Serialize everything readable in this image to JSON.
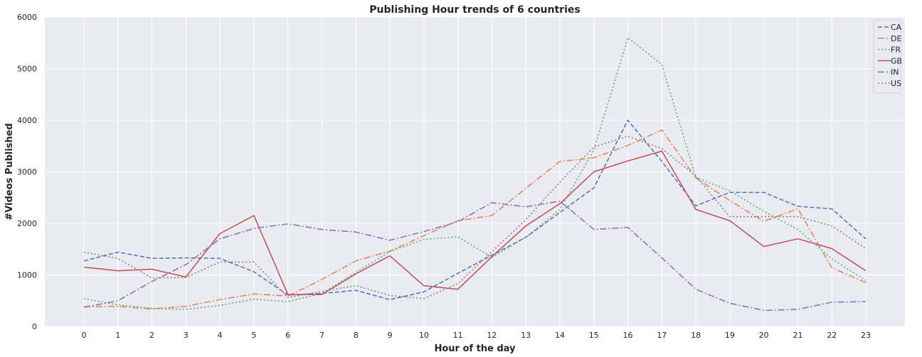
{
  "chart_data": {
    "type": "line",
    "title": "Publishing Hour trends of 6 countries",
    "xlabel": "Hour of the day",
    "ylabel": "#Videos Published",
    "x": [
      0,
      1,
      2,
      3,
      4,
      5,
      6,
      7,
      8,
      9,
      10,
      11,
      12,
      13,
      14,
      15,
      16,
      17,
      18,
      19,
      20,
      21,
      22,
      23
    ],
    "xlim": [
      -1.15,
      24.15
    ],
    "ylim": [
      0,
      6000
    ],
    "yticks": [
      0,
      1000,
      2000,
      3000,
      4000,
      5000,
      6000
    ],
    "grid": true,
    "legend_position": "top-right",
    "series": [
      {
        "name": "CA",
        "color": "#4c72b0",
        "dash": "6,3",
        "values": [
          1270,
          1440,
          1320,
          1330,
          1320,
          1060,
          610,
          640,
          700,
          520,
          670,
          1030,
          1380,
          1730,
          2210,
          2690,
          4000,
          3200,
          2340,
          2600,
          2600,
          2330,
          2280,
          1700
        ]
      },
      {
        "name": "DE",
        "color": "#dd8452",
        "dash": "9,3,2,3",
        "values": [
          380,
          390,
          340,
          390,
          520,
          630,
          590,
          910,
          1270,
          1460,
          1760,
          2050,
          2150,
          2680,
          3200,
          3270,
          3510,
          3810,
          2880,
          2440,
          2040,
          2280,
          1140,
          850
        ]
      },
      {
        "name": "FR",
        "color": "#55a868",
        "dash": "2,3",
        "values": [
          540,
          420,
          350,
          330,
          410,
          530,
          480,
          640,
          1050,
          1450,
          1690,
          1740,
          1340,
          1730,
          2270,
          3420,
          5600,
          5080,
          2890,
          2630,
          2230,
          1880,
          1310,
          890
        ]
      },
      {
        "name": "GB",
        "color": "#c44e52",
        "dash": "",
        "values": [
          1150,
          1080,
          1110,
          960,
          1800,
          2150,
          620,
          620,
          1020,
          1370,
          790,
          720,
          1350,
          1950,
          2380,
          3000,
          3210,
          3400,
          2270,
          2050,
          1550,
          1700,
          1510,
          1080
        ]
      },
      {
        "name": "IN",
        "color": "#8172b3",
        "dash": "9,3,2,3",
        "values": [
          370,
          500,
          870,
          1200,
          1700,
          1900,
          1990,
          1880,
          1830,
          1670,
          1840,
          2030,
          2400,
          2320,
          2430,
          1880,
          1920,
          1330,
          720,
          450,
          310,
          330,
          470,
          480
        ]
      },
      {
        "name": "US",
        "color": "#937860",
        "dash": "2,3",
        "values": [
          1440,
          1320,
          940,
          950,
          1250,
          1250,
          560,
          680,
          790,
          600,
          540,
          830,
          1450,
          2070,
          2800,
          3480,
          3690,
          3450,
          2920,
          2130,
          2130,
          2130,
          1950,
          1510
        ]
      }
    ]
  }
}
